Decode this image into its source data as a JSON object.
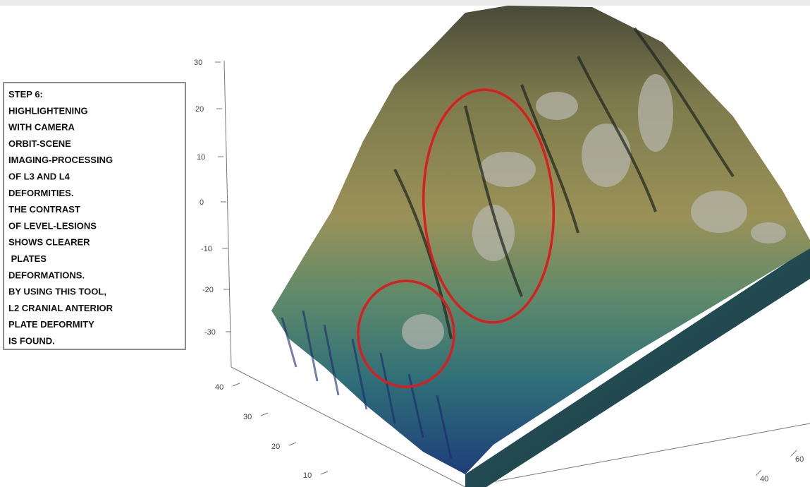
{
  "annotation": {
    "lines": [
      "STEP 6:",
      "HIGHLIGHTENING",
      "WITH CAMERA",
      "ORBIT-SCENE",
      "IMAGING-PROCESSING",
      "OF L3 AND L4",
      "DEFORMITIES.",
      "THE CONTRAST",
      "OF LEVEL-LESIONS",
      "SHOWS CLEARER",
      " PLATES",
      "DEFORMATIONS.",
      "BY USING THIS TOOL,",
      "L2 CRANIAL ANTERIOR",
      "PLATE DEFORMITY",
      "IS FOUND."
    ]
  },
  "z_axis": {
    "ticks": [
      30,
      20,
      10,
      0,
      -10,
      -20,
      -30
    ]
  },
  "y_axis": {
    "ticks": [
      40,
      30,
      20,
      10
    ]
  },
  "x_axis": {
    "ticks": [
      40,
      60
    ]
  }
}
